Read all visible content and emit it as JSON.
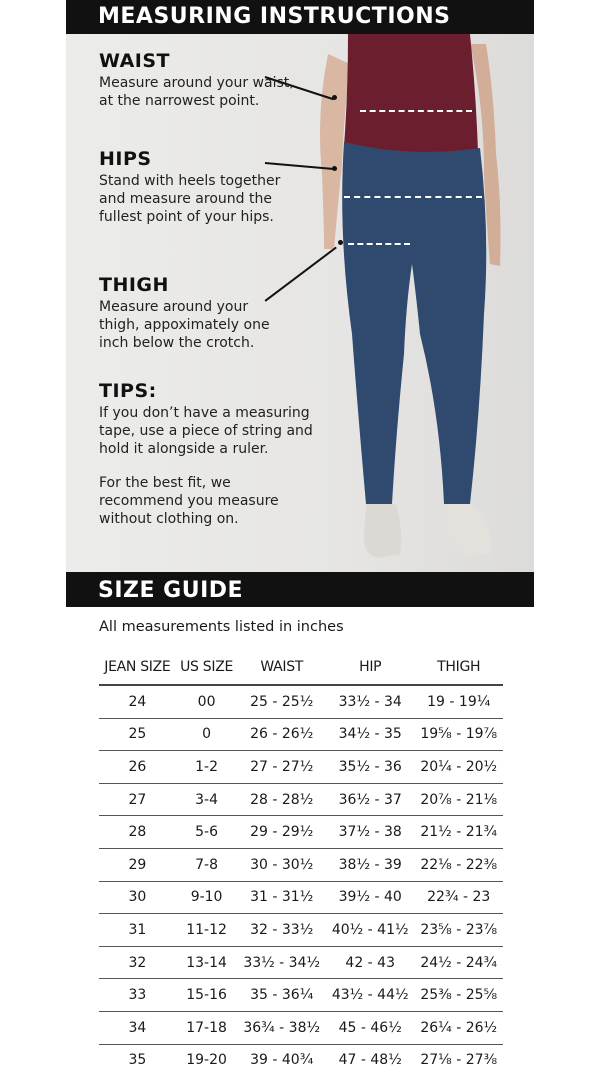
{
  "measuring": {
    "title": "MEASURING INSTRUCTIONS",
    "waist": {
      "heading": "WAIST",
      "text": "Measure around your waist, at the narrowest point."
    },
    "hips": {
      "heading": "HIPS",
      "text": "Stand with heels together and measure around the fullest point of your hips."
    },
    "thigh": {
      "heading": "THIGH",
      "text": "Measure around your thigh, appoximately one inch below the crotch."
    },
    "tips": {
      "heading": "TIPS:",
      "text1": "If you don’t have a measuring tape, use a piece of string and hold it alongside a ruler.",
      "text2": "For the best fit, we recommend you measure without clothing on."
    }
  },
  "size_guide": {
    "title": "SIZE GUIDE",
    "note": "All measurements listed in inches",
    "headers": [
      "JEAN SIZE",
      "US SIZE",
      "WAIST",
      "HIP",
      "THIGH"
    ],
    "rows": [
      [
        "24",
        "00",
        "25 - 25½",
        "33½ - 34",
        "19 - 19¼"
      ],
      [
        "25",
        "0",
        "26 - 26½",
        "34½ - 35",
        "19⅝ - 19⅞"
      ],
      [
        "26",
        "1-2",
        "27 - 27½",
        "35½ - 36",
        "20¼ - 20½"
      ],
      [
        "27",
        "3-4",
        "28 - 28½",
        "36½ - 37",
        "20⅞ - 21⅛"
      ],
      [
        "28",
        "5-6",
        "29 - 29½",
        "37½ - 38",
        "21½ - 21¾"
      ],
      [
        "29",
        "7-8",
        "30 - 30½",
        "38½ - 39",
        "22⅛ - 22⅜"
      ],
      [
        "30",
        "9-10",
        "31 - 31½",
        "39½ - 40",
        "22¾ - 23"
      ],
      [
        "31",
        "11-12",
        "32 - 33½",
        "40½ - 41½",
        "23⅝ - 23⅞"
      ],
      [
        "32",
        "13-14",
        "33½ - 34½",
        "42 - 43",
        "24½ - 24¾"
      ],
      [
        "33",
        "15-16",
        "35 - 36¼",
        "43½ - 44½",
        "25⅜ - 25⅝"
      ],
      [
        "34",
        "17-18",
        "36¾ - 38½",
        "45 - 46½",
        "26¼ - 26½"
      ],
      [
        "35",
        "19-20",
        "39 - 40¾",
        "47 - 48½",
        "27⅛ - 27⅜"
      ]
    ]
  },
  "colors": {
    "header_bg": "#111111",
    "top": "#6b1e2e",
    "denim": "#2f4a6e"
  }
}
